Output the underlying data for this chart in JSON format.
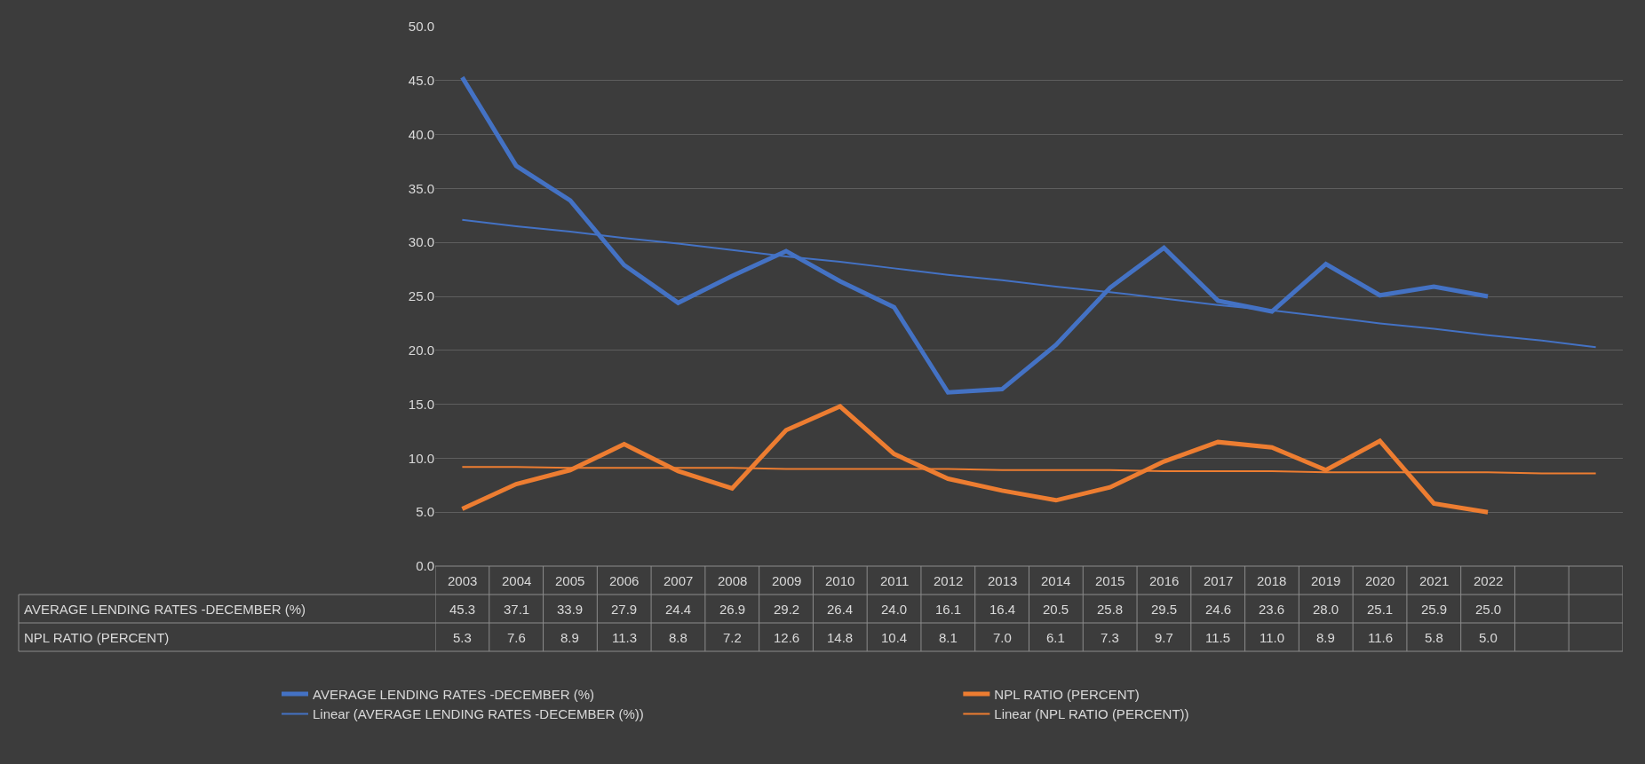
{
  "chart_data": {
    "type": "line",
    "categories": [
      "2003",
      "2004",
      "2005",
      "2006",
      "2007",
      "2008",
      "2009",
      "2010",
      "2011",
      "2012",
      "2013",
      "2014",
      "2015",
      "2016",
      "2017",
      "2018",
      "2019",
      "2020",
      "2021",
      "2022",
      null,
      null
    ],
    "series": [
      {
        "name": "AVERAGE LENDING RATES -DECEMBER (%)",
        "color": "#4472c4",
        "values": [
          45.3,
          37.1,
          33.9,
          27.9,
          24.4,
          26.9,
          29.2,
          26.4,
          24.0,
          16.1,
          16.4,
          20.5,
          25.8,
          29.5,
          24.6,
          23.6,
          28.0,
          25.1,
          25.9,
          25.0,
          null,
          null
        ],
        "value_labels": [
          "45.3",
          "37.1",
          "33.9",
          "27.9",
          "24.4",
          "26.9",
          "29.2",
          "26.4",
          "24.0",
          "16.1",
          "16.4",
          "20.5",
          "25.8",
          "29.5",
          "24.6",
          "23.6",
          "28.0",
          "25.1",
          "25.9",
          "25.0",
          null,
          null
        ]
      },
      {
        "name": "NPL RATIO (PERCENT)",
        "color": "#ed7d31",
        "values": [
          5.3,
          7.6,
          8.9,
          11.3,
          8.8,
          7.2,
          12.6,
          14.8,
          10.4,
          8.1,
          7.0,
          6.1,
          7.3,
          9.7,
          11.5,
          11.0,
          8.9,
          11.6,
          5.8,
          5.0,
          null,
          null
        ],
        "value_labels": [
          "5.3",
          "7.6",
          "8.9",
          "11.3",
          "8.8",
          "7.2",
          "12.6",
          "14.8",
          "10.4",
          "8.1",
          "7.0",
          "6.1",
          "7.3",
          "9.7",
          "11.5",
          "11.0",
          "8.9",
          "11.6",
          "5.8",
          "5.0",
          null,
          null
        ]
      },
      {
        "name": "Linear (AVERAGE LENDING RATES -DECEMBER (%))",
        "color": "#4472c4",
        "values": [
          32.1,
          31.5,
          31.0,
          30.4,
          29.9,
          29.3,
          28.7,
          28.2,
          27.6,
          27.0,
          26.5,
          25.9,
          25.4,
          24.8,
          24.2,
          23.7,
          23.1,
          22.5,
          22.0,
          21.4,
          20.9,
          20.3
        ]
      },
      {
        "name": "Linear (NPL RATIO (PERCENT))",
        "color": "#ed7d31",
        "values": [
          9.2,
          9.2,
          9.1,
          9.1,
          9.1,
          9.1,
          9.0,
          9.0,
          9.0,
          9.0,
          8.9,
          8.9,
          8.9,
          8.8,
          8.8,
          8.8,
          8.7,
          8.7,
          8.7,
          8.7,
          8.6,
          8.6
        ]
      }
    ],
    "ylim": [
      0,
      50
    ],
    "yticks": [
      {
        "value": 0,
        "label": "0.0"
      },
      {
        "value": 5,
        "label": "5.0"
      },
      {
        "value": 10,
        "label": "10.0"
      },
      {
        "value": 15,
        "label": "15.0"
      },
      {
        "value": 20,
        "label": "20.0"
      },
      {
        "value": 25,
        "label": "25.0"
      },
      {
        "value": 30,
        "label": "30.0"
      },
      {
        "value": 35,
        "label": "35.0"
      },
      {
        "value": 40,
        "label": "40.0"
      },
      {
        "value": 45,
        "label": "45.0"
      },
      {
        "value": 50,
        "label": "50.0"
      }
    ],
    "grid": "y",
    "legend": "bottom",
    "marker": "none"
  }
}
